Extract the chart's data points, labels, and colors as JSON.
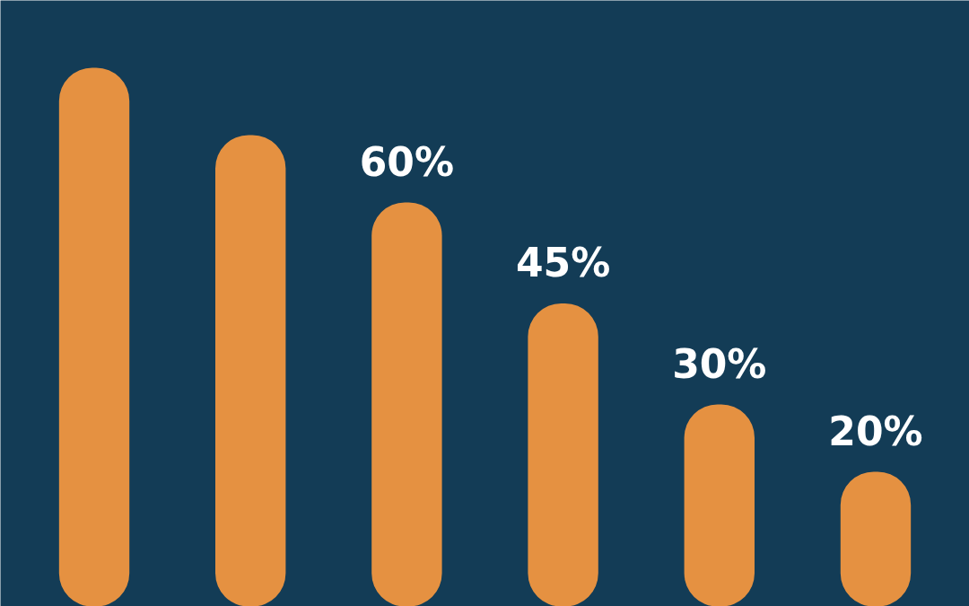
{
  "chart_data": {
    "type": "bar",
    "categories": [
      null,
      null,
      null,
      null,
      null,
      null
    ],
    "values": [
      80,
      70,
      60,
      45,
      30,
      20
    ],
    "value_labels": [
      null,
      null,
      "60%",
      "45%",
      "30%",
      "20%"
    ],
    "color": "#e59141",
    "ylim": [
      0,
      90
    ],
    "tick_labels": false,
    "grid": false
  }
}
